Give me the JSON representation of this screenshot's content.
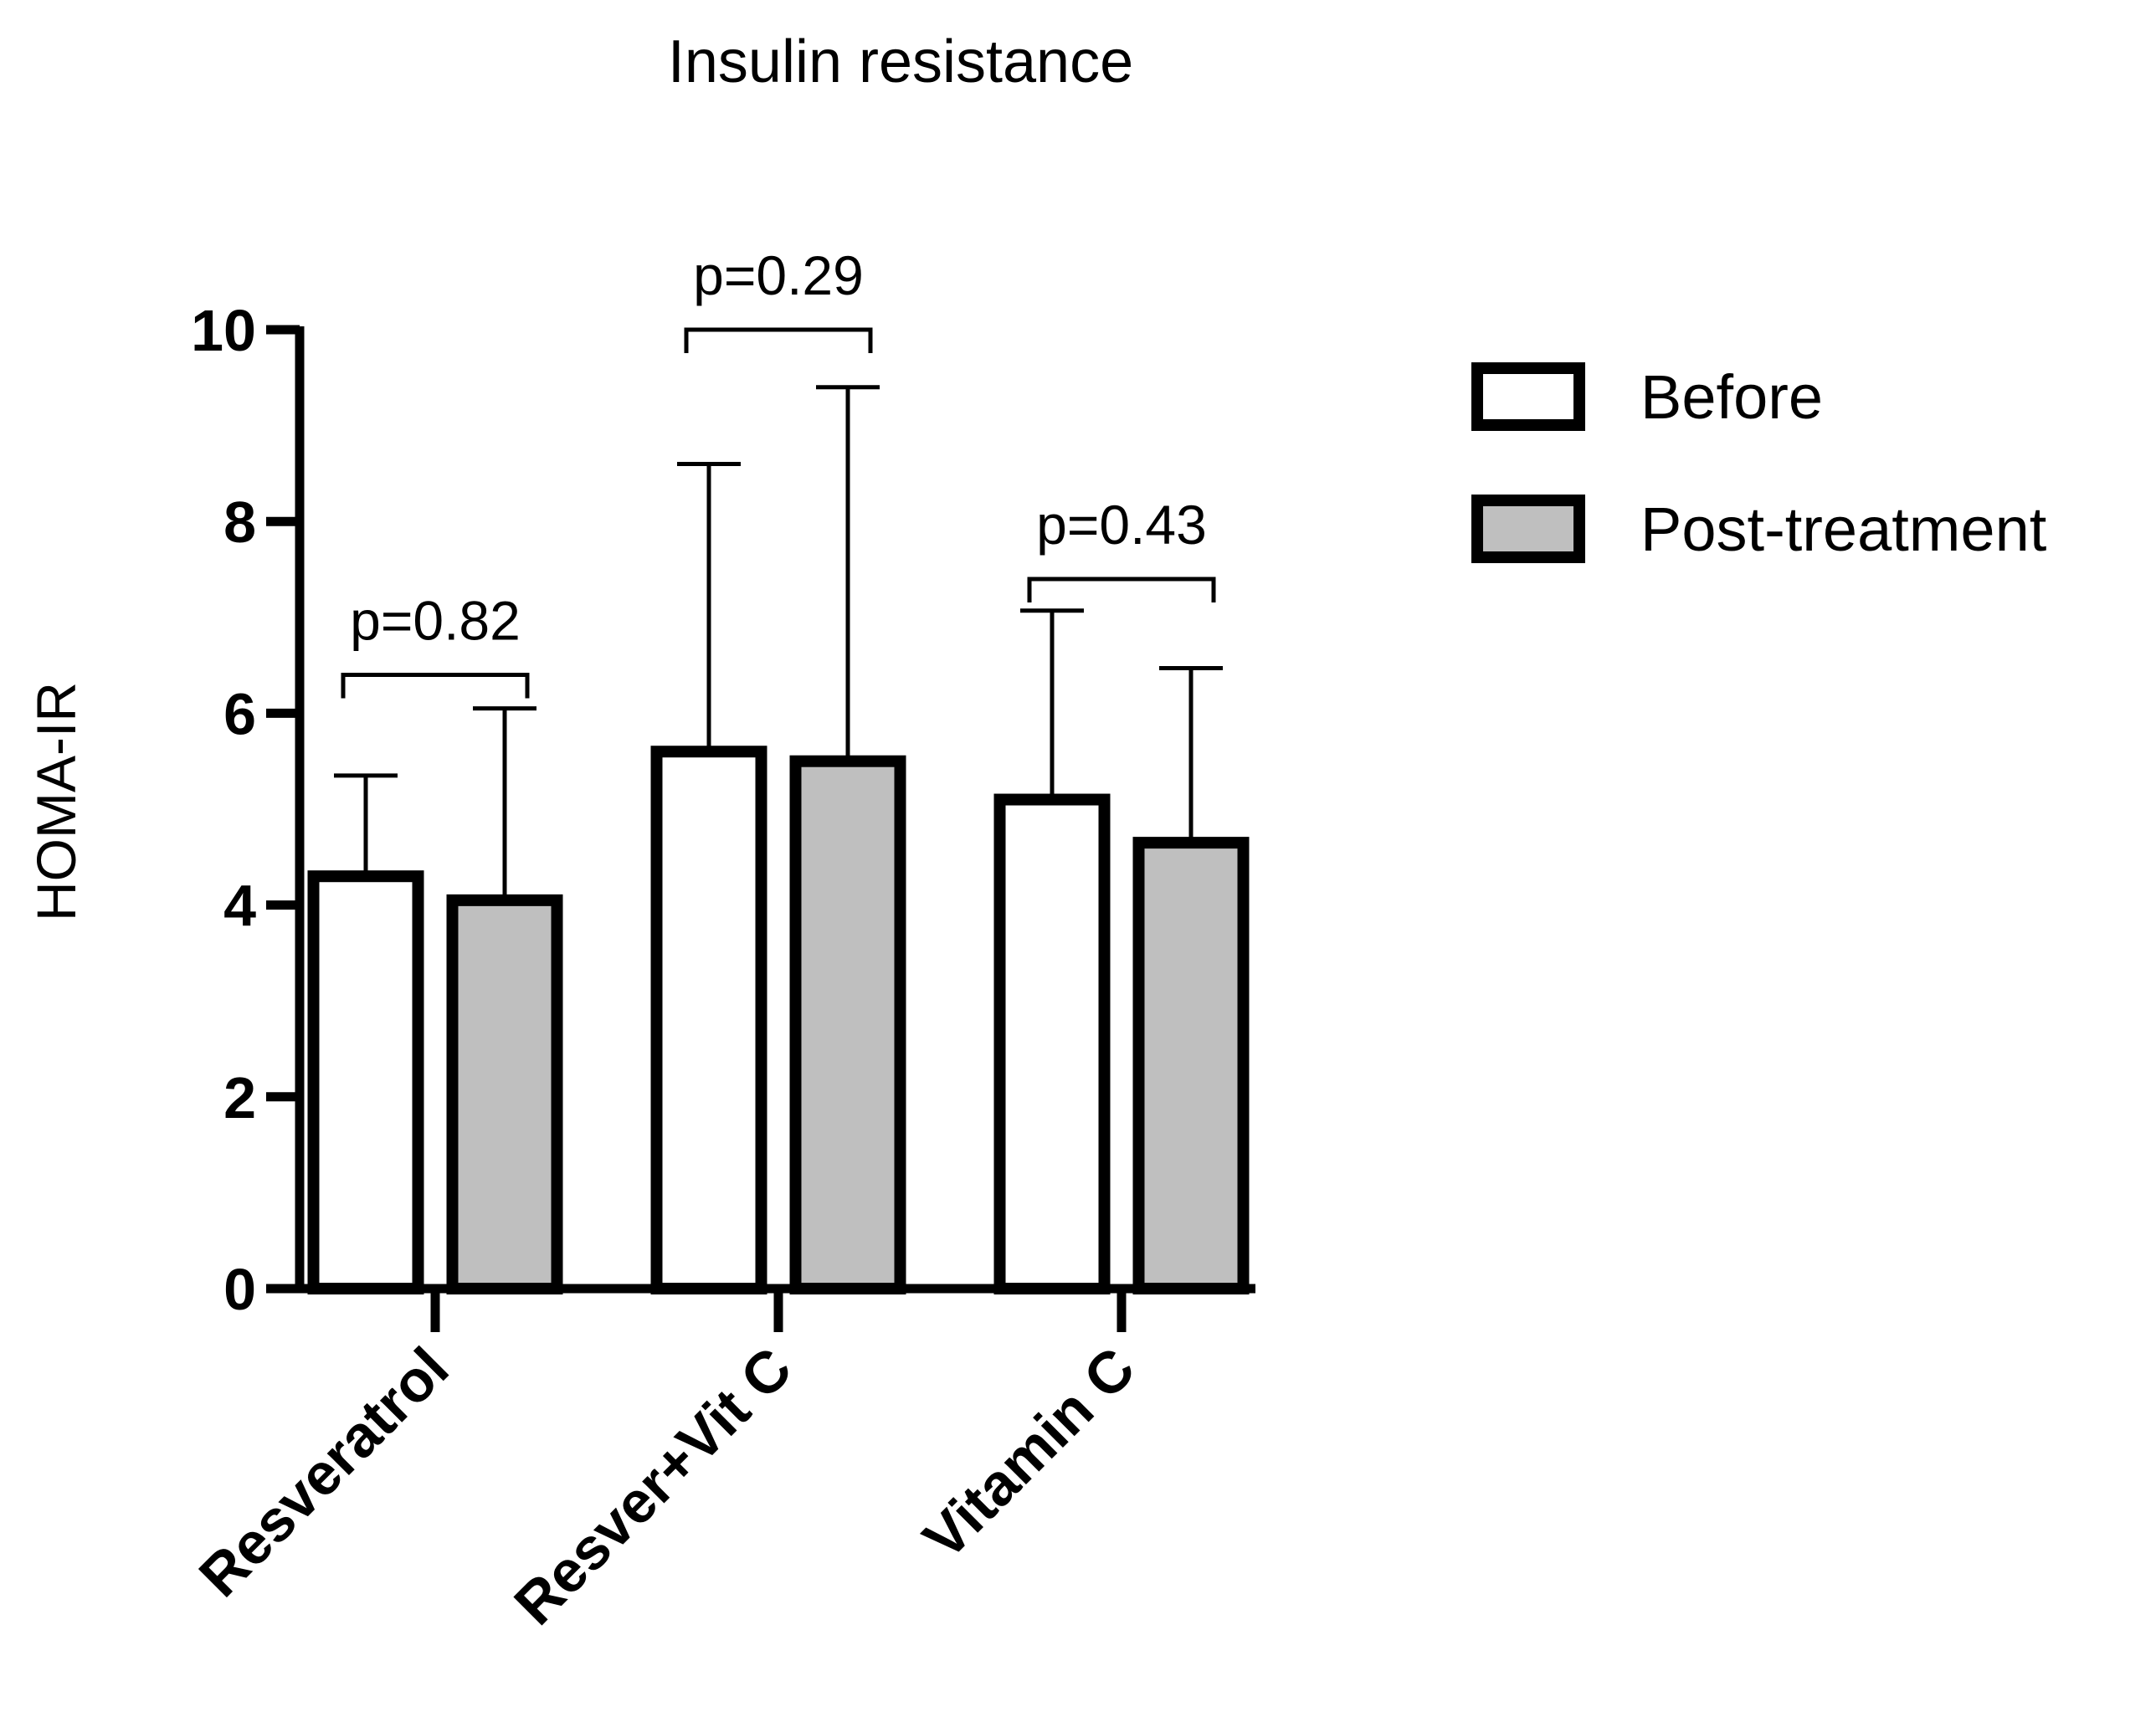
{
  "chart_data": {
    "type": "bar",
    "title": "Insulin resistance",
    "xlabel": "",
    "ylabel": "HOMA-IR",
    "ylim": [
      0,
      10
    ],
    "yticks": [
      0,
      2,
      4,
      6,
      8,
      10
    ],
    "yticks_labels": [
      "0",
      "2",
      "4",
      "6",
      "8",
      "10"
    ],
    "categories": [
      "Resveratrol",
      "Resver+Vit C",
      "Vitamin C"
    ],
    "series": [
      {
        "name": "Before",
        "color": "#ffffff",
        "values": [
          4.3,
          5.6,
          5.1
        ],
        "error_upper": [
          5.35,
          8.6,
          7.07
        ]
      },
      {
        "name": "Post-treatment",
        "color": "#bfbfbf",
        "values": [
          4.05,
          5.5,
          4.65
        ],
        "error_upper": [
          6.05,
          9.4,
          6.47
        ]
      }
    ],
    "annotations": [
      {
        "category": "Resveratrol",
        "text": "p=0.82",
        "bracket_y": 6.4
      },
      {
        "category": "Resver+Vit C",
        "text": "p=0.29",
        "bracket_y": 10.0
      },
      {
        "category": "Vitamin C",
        "text": "p=0.43",
        "bracket_y": 7.4
      }
    ],
    "legend": {
      "position": "right",
      "entries": [
        "Before",
        "Post-treatment"
      ]
    },
    "grid": false
  }
}
